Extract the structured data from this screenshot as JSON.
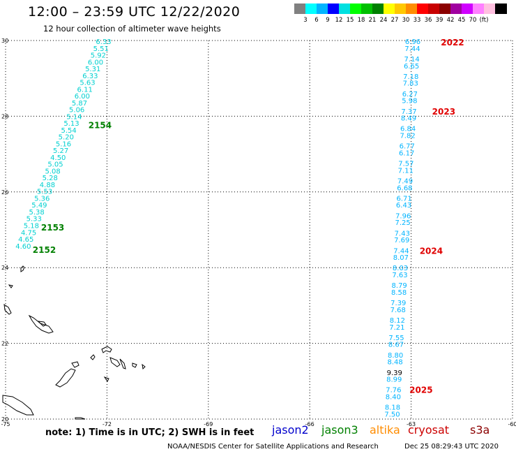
{
  "header": {
    "title": "12:00 – 23:59 UTC 12/22/2020",
    "subtitle": "12 hour collection of altimeter wave heights"
  },
  "legend": {
    "colors": [
      "#808080",
      "#00ffff",
      "#00b4ff",
      "#0000ff",
      "#00e0e0",
      "#00ff00",
      "#00c000",
      "#008000",
      "#ffff00",
      "#ffc800",
      "#ff8c00",
      "#ff0000",
      "#c80000",
      "#8b0000",
      "#a000a0",
      "#d000ff",
      "#ff80ff",
      "#ffc0e0",
      "#000000"
    ],
    "labels": [
      "3",
      "6",
      "9",
      "12",
      "15",
      "18",
      "21",
      "24",
      "27",
      "30",
      "33",
      "36",
      "39",
      "42",
      "45",
      "70",
      "(ft)"
    ]
  },
  "axes": {
    "lon_labels": [
      "-75",
      "-72",
      "-69",
      "-66",
      "-63",
      "-60"
    ],
    "lat_labels": [
      "30",
      "28",
      "26",
      "24",
      "22",
      "20"
    ],
    "lon_range": [
      -75,
      -60
    ],
    "lat_range": [
      20,
      30
    ]
  },
  "tracks": [
    {
      "color": "#00d0d0",
      "points": [
        {
          "v": "6.33",
          "lat": 29.98
        },
        {
          "v": "5.51",
          "lat": 29.8
        },
        {
          "v": "5.92",
          "lat": 29.62
        },
        {
          "v": "6.00",
          "lat": 29.44
        },
        {
          "v": "5.31",
          "lat": 29.26
        },
        {
          "v": "6.33",
          "lat": 29.08
        },
        {
          "v": "5.63",
          "lat": 28.9
        },
        {
          "v": "6.11",
          "lat": 28.72
        },
        {
          "v": "6.00",
          "lat": 28.54
        },
        {
          "v": "5.87",
          "lat": 28.36
        },
        {
          "v": "5.06",
          "lat": 28.18
        },
        {
          "v": "5.14",
          "lat": 28.0
        },
        {
          "v": "5.13",
          "lat": 27.82
        },
        {
          "v": "5.54",
          "lat": 27.64
        },
        {
          "v": "5.20",
          "lat": 27.46
        },
        {
          "v": "5.16",
          "lat": 27.28
        },
        {
          "v": "5.27",
          "lat": 27.1
        },
        {
          "v": "4.50",
          "lat": 26.92
        },
        {
          "v": "5.05",
          "lat": 26.74
        },
        {
          "v": "5.08",
          "lat": 26.56
        },
        {
          "v": "5.28",
          "lat": 26.38
        },
        {
          "v": "4.88",
          "lat": 26.2
        },
        {
          "v": "5.53",
          "lat": 26.02
        },
        {
          "v": "5.36",
          "lat": 25.84
        },
        {
          "v": "5.49",
          "lat": 25.66
        },
        {
          "v": "5.38",
          "lat": 25.48
        },
        {
          "v": "5.33",
          "lat": 25.3
        },
        {
          "v": "5.18",
          "lat": 25.12
        },
        {
          "v": "4.75",
          "lat": 24.94
        },
        {
          "v": "4.65",
          "lat": 24.76
        },
        {
          "v": "4.60",
          "lat": 24.58
        }
      ]
    },
    {
      "color": "#00b4ff",
      "points": [
        {
          "v": "6.96",
          "lat": 29.98
        },
        {
          "v": "7.44",
          "lat": 29.8
        },
        {
          "v": "7.14",
          "lat": 29.52
        },
        {
          "v": "6.65",
          "lat": 29.34
        },
        {
          "v": "7.18",
          "lat": 29.06
        },
        {
          "v": "7.83",
          "lat": 28.88
        },
        {
          "v": "6.27",
          "lat": 28.6
        },
        {
          "v": "5.98",
          "lat": 28.42
        },
        {
          "v": "7.37",
          "lat": 28.14
        },
        {
          "v": "8.49",
          "lat": 27.96
        },
        {
          "v": "6.84",
          "lat": 27.68
        },
        {
          "v": "7.82",
          "lat": 27.5
        },
        {
          "v": "6.77",
          "lat": 27.22
        },
        {
          "v": "6.17",
          "lat": 27.04
        },
        {
          "v": "7.57",
          "lat": 26.76
        },
        {
          "v": "7.11",
          "lat": 26.58
        },
        {
          "v": "7.49",
          "lat": 26.3
        },
        {
          "v": "6.68",
          "lat": 26.12
        },
        {
          "v": "6.71",
          "lat": 25.84
        },
        {
          "v": "6.43",
          "lat": 25.66
        },
        {
          "v": "7.96",
          "lat": 25.38
        },
        {
          "v": "7.25",
          "lat": 25.2
        },
        {
          "v": "7.43",
          "lat": 24.92
        },
        {
          "v": "7.69",
          "lat": 24.74
        },
        {
          "v": "7.44",
          "lat": 24.46
        },
        {
          "v": "8.07",
          "lat": 24.28
        },
        {
          "v": "8.03",
          "lat": 24.0
        },
        {
          "v": "7.63",
          "lat": 23.82
        },
        {
          "v": "8.79",
          "lat": 23.54
        },
        {
          "v": "8.58",
          "lat": 23.36
        },
        {
          "v": "7.39",
          "lat": 23.08
        },
        {
          "v": "7.68",
          "lat": 22.9
        },
        {
          "v": "8.12",
          "lat": 22.62
        },
        {
          "v": "7.21",
          "lat": 22.44
        },
        {
          "v": "7.55",
          "lat": 22.16
        },
        {
          "v": "8.67",
          "lat": 21.98
        },
        {
          "v": "8.80",
          "lat": 21.7
        },
        {
          "v": "8.48",
          "lat": 21.52
        },
        {
          "v": "9.39",
          "lat": 21.24
        },
        {
          "v": "8.99",
          "lat": 21.06
        },
        {
          "v": "7.76",
          "lat": 20.78
        },
        {
          "v": "8.40",
          "lat": 20.6
        },
        {
          "v": "8.18",
          "lat": 20.32
        },
        {
          "v": "7.50",
          "lat": 20.14
        }
      ]
    }
  ],
  "time_tags": [
    {
      "text": "2154",
      "lon": -72.55,
      "lat": 27.78,
      "color": "#008000"
    },
    {
      "text": "2153",
      "lon": -73.95,
      "lat": 25.07,
      "color": "#008000"
    },
    {
      "text": "2152",
      "lon": -74.2,
      "lat": 24.48,
      "color": "#008000"
    },
    {
      "text": "2022",
      "lon": -62.12,
      "lat": 29.96,
      "color": "#e00000"
    },
    {
      "text": "2023",
      "lon": -62.38,
      "lat": 28.14,
      "color": "#e00000"
    },
    {
      "text": "2024",
      "lon": -62.75,
      "lat": 24.46,
      "color": "#e00000"
    },
    {
      "text": "2025",
      "lon": -63.05,
      "lat": 20.78,
      "color": "#e00000"
    }
  ],
  "footer": {
    "note": "note: 1) Time is in UTC; 2) SWH is in feet",
    "satellites": [
      {
        "name": "jason2",
        "color": "#0000cc"
      },
      {
        "name": "jason3",
        "color": "#008000"
      },
      {
        "name": "altika",
        "color": "#ff8c00"
      },
      {
        "name": "cryosat",
        "color": "#cc0000"
      },
      {
        "name": "s3a",
        "color": "#8b0000"
      }
    ],
    "credit": "NOAA/NESDIS Center for Satellite Applications and Research",
    "timestamp": "Dec 25 08:29:43 UTC 2020"
  }
}
